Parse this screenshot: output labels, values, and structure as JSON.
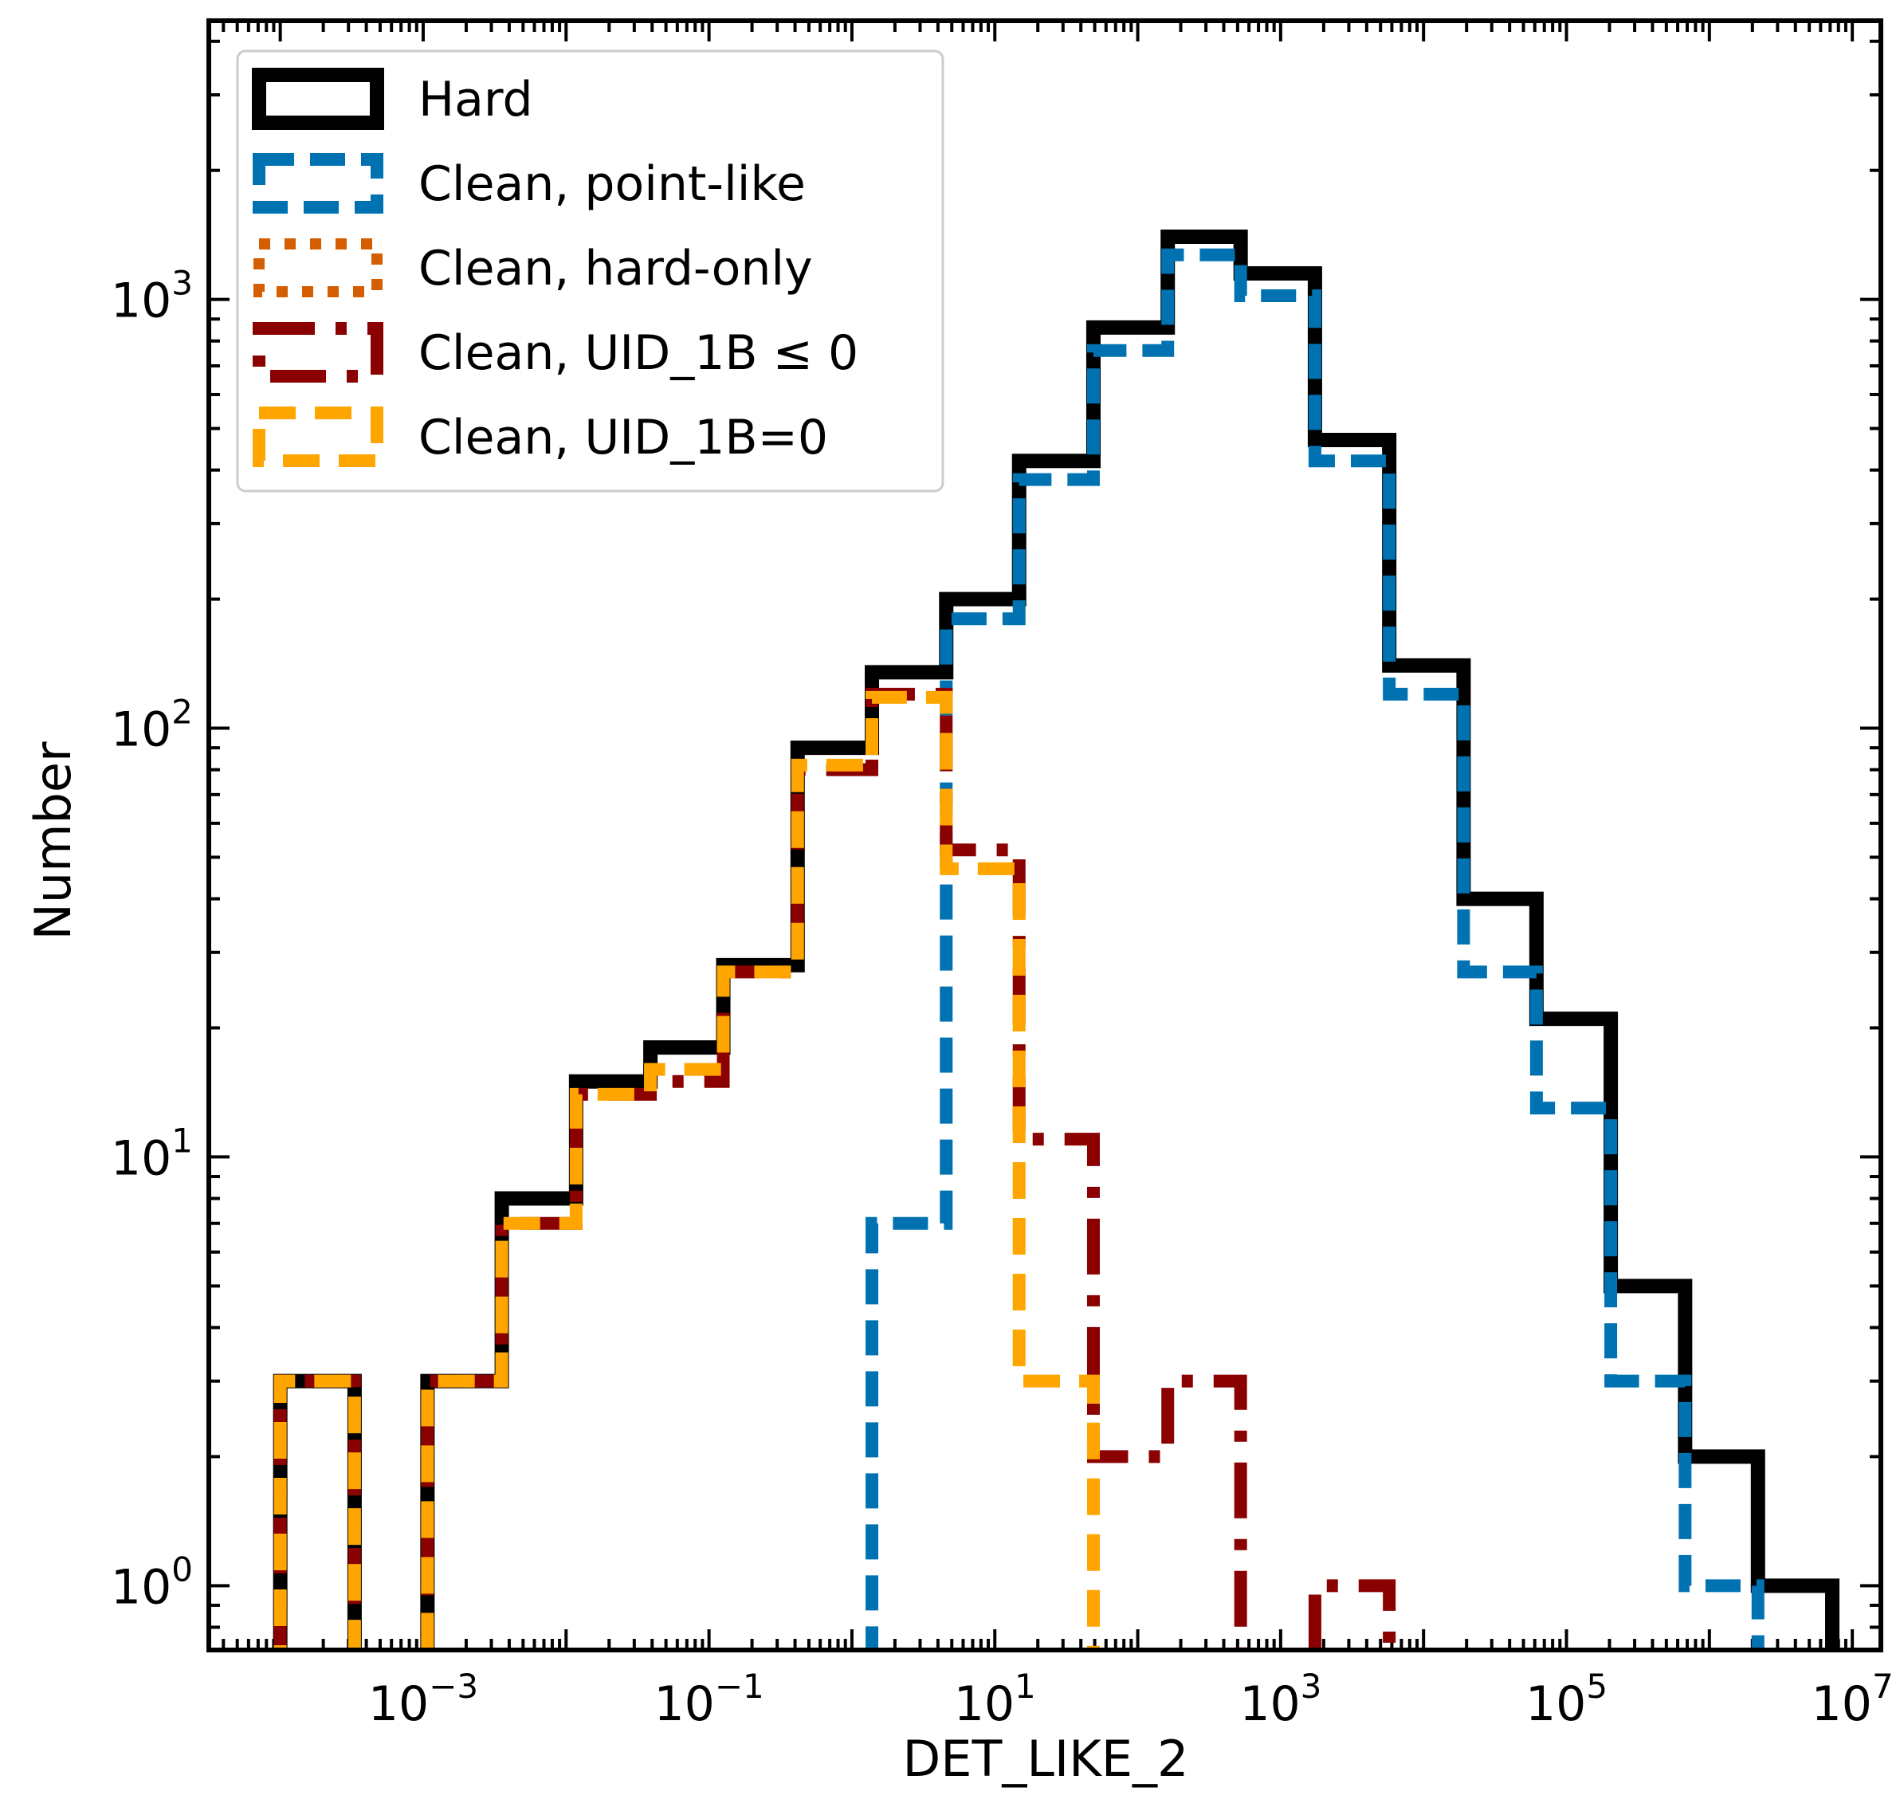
{
  "chart_data": {
    "type": "histogram",
    "xlabel": "DET_LIKE_2",
    "ylabel": "Number",
    "xscale": "log",
    "yscale": "log",
    "xlim_log10": [
      -4.5,
      7.2
    ],
    "ylim_log10": [
      -0.15,
      3.65
    ],
    "legend_position": "upper-left",
    "x_ticks": [
      {
        "base": "10",
        "exp": "−3",
        "log": -3
      },
      {
        "base": "10",
        "exp": "−1",
        "log": -1
      },
      {
        "base": "10",
        "exp": "1",
        "log": 1
      },
      {
        "base": "10",
        "exp": "3",
        "log": 3
      },
      {
        "base": "10",
        "exp": "5",
        "log": 5
      },
      {
        "base": "10",
        "exp": "7",
        "log": 7
      }
    ],
    "y_ticks": [
      {
        "base": "10",
        "exp": "0",
        "log": 0
      },
      {
        "base": "10",
        "exp": "1",
        "log": 1
      },
      {
        "base": "10",
        "exp": "2",
        "log": 2
      },
      {
        "base": "10",
        "exp": "3",
        "log": 3
      }
    ],
    "bin_edges_log10": [
      -4.0,
      -3.48,
      -2.97,
      -2.45,
      -1.93,
      -1.41,
      -0.9,
      -0.38,
      0.14,
      0.66,
      1.17,
      1.69,
      2.21,
      2.72,
      3.24,
      3.76,
      4.28,
      4.79,
      5.31,
      5.83,
      6.34,
      6.86
    ],
    "series": [
      {
        "name": "Hard",
        "color": "#000000",
        "style": "solid",
        "values": [
          3,
          0,
          3,
          8,
          15,
          18,
          28,
          90,
          135,
          200,
          420,
          860,
          1400,
          1150,
          470,
          140,
          40,
          21,
          5,
          2,
          1
        ]
      },
      {
        "name": "Clean, point-like",
        "color": "#0072b2",
        "style": "dashed",
        "values": [
          0,
          0,
          0,
          0,
          0,
          0,
          0,
          0,
          7,
          180,
          380,
          760,
          1270,
          1020,
          420,
          120,
          27,
          13,
          3,
          1,
          0
        ]
      },
      {
        "name": "Clean, hard-only",
        "color": "#d55e00",
        "style": "dotted",
        "values": [
          0,
          0,
          0,
          0,
          0,
          0,
          0,
          0,
          0,
          0,
          0,
          0,
          0,
          0,
          0,
          0,
          0,
          0,
          0,
          0,
          0
        ]
      },
      {
        "name": "Clean, UID_1B ≤ 0",
        "color": "#8b0000",
        "style": "dashdot",
        "values": [
          3,
          0,
          3,
          7,
          14,
          15,
          27,
          80,
          120,
          52,
          11,
          2,
          3,
          0,
          1,
          0,
          0,
          0,
          0,
          0,
          0
        ]
      },
      {
        "name": "Clean, UID_1B=0",
        "color": "#ffa500",
        "style": "longdash",
        "values": [
          3,
          0,
          3,
          7,
          14,
          16,
          27,
          82,
          118,
          47,
          3,
          0,
          0,
          0,
          0,
          0,
          0,
          0,
          0,
          0,
          0
        ]
      }
    ]
  },
  "legend": {
    "items": [
      {
        "label": "Hard"
      },
      {
        "label": "Clean, point-like"
      },
      {
        "label": "Clean, hard-only"
      },
      {
        "label": "Clean, UID_1B ≤ 0"
      },
      {
        "label": "Clean, UID_1B=0"
      }
    ]
  }
}
